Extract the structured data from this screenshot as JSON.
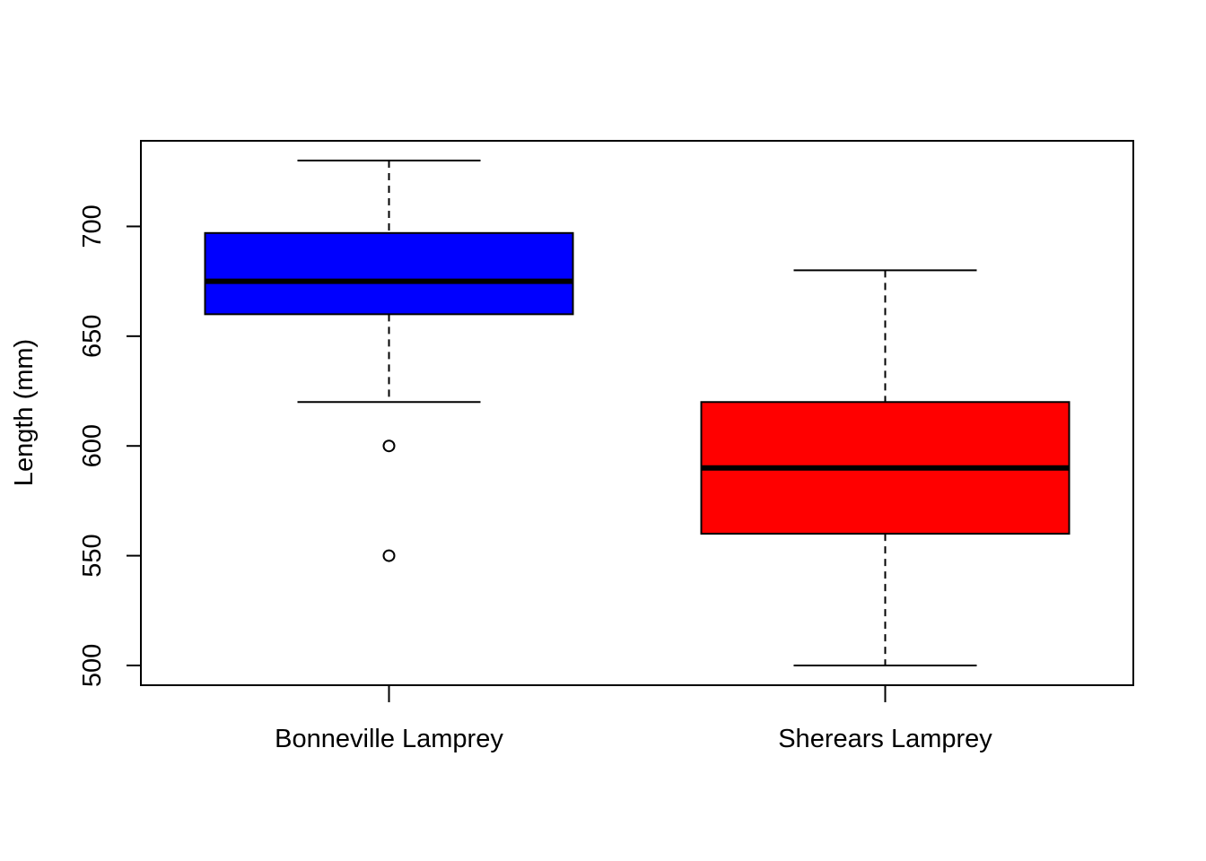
{
  "chart_data": {
    "type": "boxplot",
    "title": "",
    "xlabel": "",
    "ylabel": "Length (mm)",
    "ylim": [
      491,
      739
    ],
    "yticks": [
      500,
      550,
      600,
      650,
      700
    ],
    "ytick_labels": [
      "500",
      "550",
      "600",
      "650",
      "700"
    ],
    "grid": false,
    "series": [
      {
        "category": "Bonneville Lamprey",
        "color": "#0000FF",
        "whisker_low": 620,
        "q1": 660,
        "median": 675,
        "q3": 697,
        "whisker_high": 730,
        "outliers": [
          600,
          550
        ]
      },
      {
        "category": "Sherears Lamprey",
        "color": "#FF0000",
        "whisker_low": 500,
        "q1": 560,
        "median": 590,
        "q3": 620,
        "whisker_high": 680,
        "outliers": []
      }
    ]
  }
}
